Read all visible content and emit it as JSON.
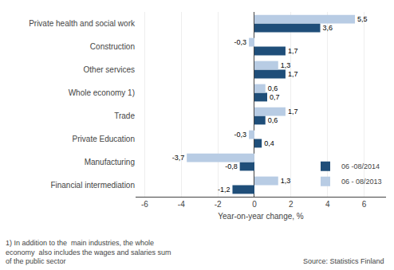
{
  "chart_data": {
    "type": "bar",
    "orientation": "horizontal",
    "categories": [
      "Financial intermediation",
      "Manufacturing",
      "Private Education",
      "Trade",
      "Whole economy 1)",
      "Other services",
      "Construction",
      "Private health and social work"
    ],
    "series": [
      {
        "name": "06 -08/2014",
        "color": "#1f4e79",
        "values": [
          -1.2,
          -0.8,
          0.4,
          0.6,
          0.7,
          1.7,
          1.7,
          3.6
        ],
        "value_labels": [
          "-1,2",
          "-0,8",
          "0,4",
          "0,6",
          "0,7",
          "1,7",
          "1,7",
          "3,6"
        ]
      },
      {
        "name": "06 - 08/2013",
        "color": "#b8cce4",
        "values": [
          1.3,
          -3.7,
          -0.3,
          1.7,
          0.6,
          1.3,
          -0.3,
          5.5
        ],
        "value_labels": [
          "1,3",
          "-3,7",
          "-0,3",
          "1,7",
          "0,6",
          "1,3",
          "-0,3",
          "5,5"
        ]
      }
    ],
    "xlim": [
      -6.5,
      7.2
    ],
    "xticks": [
      -6,
      -4,
      -2,
      0,
      2,
      4,
      6
    ],
    "xlabel": "Year-on-year change, %",
    "grid": true,
    "legend": "lower right",
    "data_labels": true,
    "annotations": [
      "1) In addition to the  main industries, the whole",
      "economy  also includes the wages and salaries sum",
      "of the public sector",
      "Source: Statistics Finland"
    ]
  }
}
